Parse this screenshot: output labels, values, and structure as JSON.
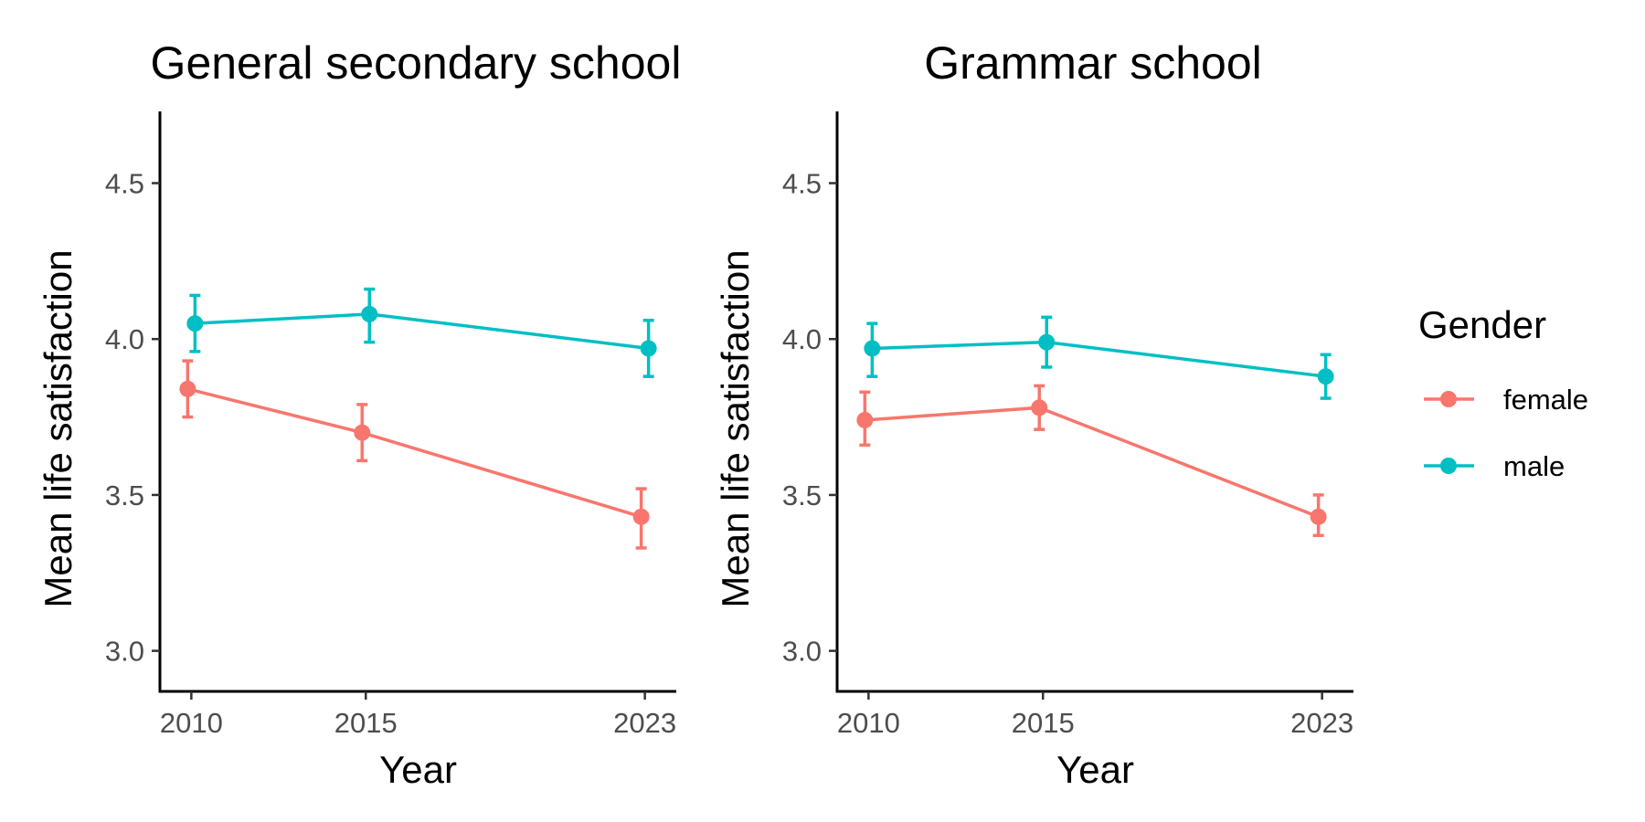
{
  "chart_data": [
    {
      "type": "line",
      "title": "General secondary school",
      "xlabel": "Year",
      "ylabel": "Mean life satisfaction",
      "x": [
        2010,
        2015,
        2023
      ],
      "xlim": [
        2009.1,
        2023.9
      ],
      "ylim": [
        2.87,
        4.73
      ],
      "yticks": [
        "3.0",
        "3.5",
        "4.0",
        "4.5"
      ],
      "ytick_values": [
        3.0,
        3.5,
        4.0,
        4.5
      ],
      "xticks": [
        "2010",
        "2015",
        "2023"
      ],
      "error_bars": true,
      "series": [
        {
          "name": "female",
          "color": "#f8766d",
          "values": [
            3.84,
            3.7,
            3.43
          ],
          "lower": [
            3.75,
            3.61,
            3.33
          ],
          "upper": [
            3.93,
            3.79,
            3.52
          ]
        },
        {
          "name": "male",
          "color": "#00bfc4",
          "values": [
            4.05,
            4.08,
            3.97
          ],
          "lower": [
            3.96,
            3.99,
            3.88
          ],
          "upper": [
            4.14,
            4.16,
            4.06
          ]
        }
      ]
    },
    {
      "type": "line",
      "title": "Grammar school",
      "xlabel": "Year",
      "ylabel": "Mean life satisfaction",
      "x": [
        2010,
        2015,
        2023
      ],
      "xlim": [
        2009.1,
        2023.9
      ],
      "ylim": [
        2.87,
        4.73
      ],
      "yticks": [
        "3.0",
        "3.5",
        "4.0",
        "4.5"
      ],
      "ytick_values": [
        3.0,
        3.5,
        4.0,
        4.5
      ],
      "xticks": [
        "2010",
        "2015",
        "2023"
      ],
      "error_bars": true,
      "series": [
        {
          "name": "female",
          "color": "#f8766d",
          "values": [
            3.74,
            3.78,
            3.43
          ],
          "lower": [
            3.66,
            3.71,
            3.37
          ],
          "upper": [
            3.83,
            3.85,
            3.5
          ]
        },
        {
          "name": "male",
          "color": "#00bfc4",
          "values": [
            3.97,
            3.99,
            3.88
          ],
          "lower": [
            3.88,
            3.91,
            3.81
          ],
          "upper": [
            4.05,
            4.07,
            3.95
          ]
        }
      ]
    }
  ],
  "legend": {
    "title": "Gender",
    "position": "right",
    "items": [
      {
        "label": "female",
        "color": "#f8766d"
      },
      {
        "label": "male",
        "color": "#00bfc4"
      }
    ]
  }
}
